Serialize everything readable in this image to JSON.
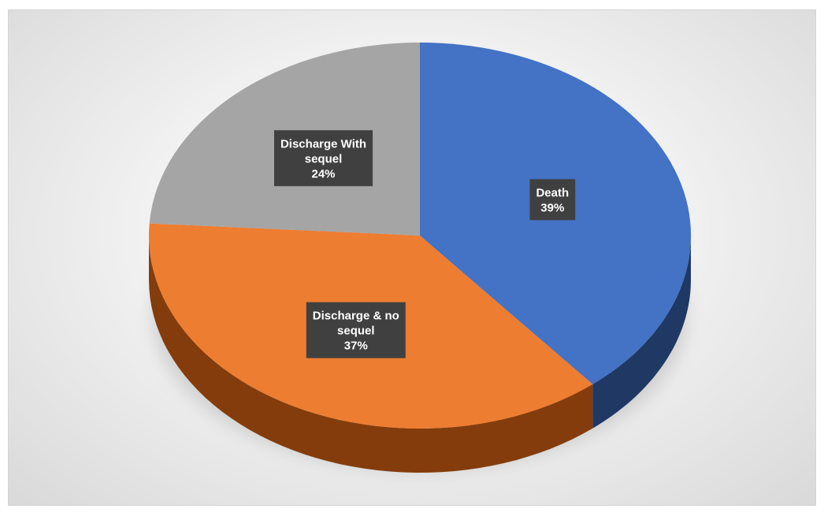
{
  "chart_data": {
    "type": "pie",
    "style": "3d",
    "categories": [
      "Death",
      "Discharge & no sequel",
      "Discharge With sequel"
    ],
    "values": [
      39,
      37,
      24
    ],
    "unit": "%",
    "labels": [
      {
        "lines": [
          "Death",
          "39%"
        ]
      },
      {
        "lines": [
          "Discharge & no",
          "sequel",
          "37%"
        ]
      },
      {
        "lines": [
          "Discharge With",
          "sequel",
          "24%"
        ]
      }
    ],
    "colors": [
      "#4472C4",
      "#ED7D31",
      "#A5A5A5"
    ],
    "side_colors": [
      "#1F3864",
      "#843C0C",
      "#7F7F7F"
    ],
    "label_box_color": "#404040",
    "legend": false,
    "start_angle": "12 o'clock, clockwise"
  }
}
